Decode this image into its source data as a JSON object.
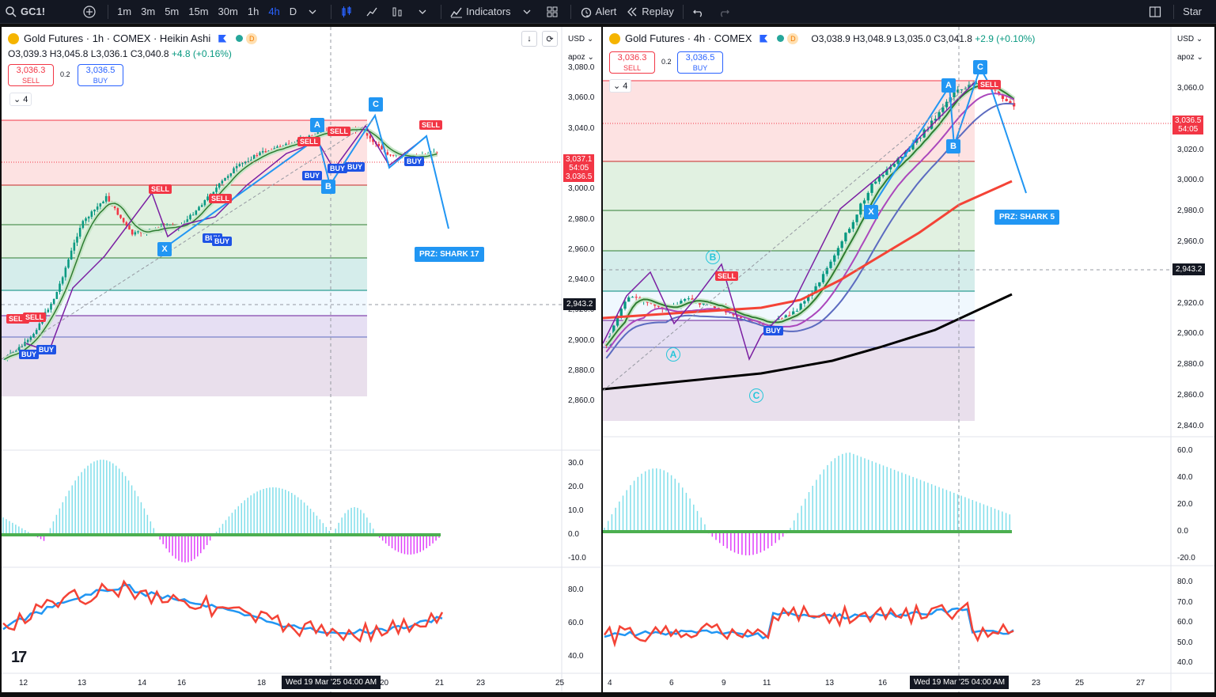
{
  "toolbar": {
    "symbol": "GC1!",
    "intervals": [
      "1m",
      "3m",
      "5m",
      "15m",
      "30m",
      "1h",
      "4h",
      "D"
    ],
    "active_interval": "4h",
    "indicators_label": "Indicators",
    "alert_label": "Alert",
    "replay_label": "Replay",
    "star_label": "Star"
  },
  "left": {
    "title": "Gold Futures · 1h · COMEX · Heikin Ashi",
    "d_badge": "D",
    "ohlc": {
      "o": "O3,039.3",
      "h": "H3,045.8",
      "l": "L3,036.1",
      "c": "C3,040.8",
      "chg": "+4.8 (+0.16%)"
    },
    "sell": {
      "price": "3,036.3",
      "label": "SELL"
    },
    "buy": {
      "price": "3,036.5",
      "label": "BUY"
    },
    "spread": "0.2",
    "collapse": "4",
    "currency": "USD",
    "scale_mode": "apoz",
    "price_ticks": [
      "3,080.0",
      "3,060.0",
      "3,040.0",
      "3,020.0",
      "3,000.0",
      "2,980.0",
      "2,960.0",
      "2,940.0",
      "2,920.0",
      "2,900.0",
      "2,880.0",
      "2,860.0"
    ],
    "osc_ticks": [
      "30.0",
      "20.0",
      "10.0",
      "0.0",
      "-10.0"
    ],
    "rsi_ticks": [
      "80.0",
      "60.0",
      "40.0"
    ],
    "date_ticks": [
      "12",
      "13",
      "14",
      "16",
      "18",
      "20",
      "21",
      "23",
      "25"
    ],
    "date_box": "Wed 19 Mar '25   04:00 AM",
    "price_box": {
      "price": "3,037.1",
      "time": "54:05",
      "price2": "3,036.5"
    },
    "cross_price": "2,943.2",
    "points": [
      "X",
      "A",
      "B",
      "C"
    ],
    "prz": "PRZ: SHARK 17",
    "sell_tag": "SELL",
    "buy_tag": "BUY"
  },
  "right": {
    "title": "Gold Futures · 4h · COMEX",
    "d_badge": "D",
    "ohlc": {
      "o": "O3,038.9",
      "h": "H3,048.9",
      "l": "L3,035.0",
      "c": "C3,041.8",
      "chg": "+2.9 (+0.10%)"
    },
    "sell": {
      "price": "3,036.3",
      "label": "SELL"
    },
    "buy": {
      "price": "3,036.5",
      "label": "BUY"
    },
    "spread": "0.2",
    "collapse": "4",
    "currency": "USD",
    "scale_mode": "apoz",
    "price_ticks": [
      "3,060.0",
      "3,040.0",
      "3,020.0",
      "3,000.0",
      "2,980.0",
      "2,960.0",
      "2,940.0",
      "2,920.0",
      "2,900.0",
      "2,880.0",
      "2,860.0",
      "2,840.0"
    ],
    "osc_ticks": [
      "60.0",
      "40.0",
      "20.0",
      "0.0",
      "-20.0"
    ],
    "rsi_ticks": [
      "80.0",
      "70.0",
      "60.0",
      "50.0",
      "40.0"
    ],
    "date_ticks": [
      "4",
      "6",
      "9",
      "11",
      "13",
      "16",
      "23",
      "25",
      "27"
    ],
    "date_box": "Wed 19 Mar '25   04:00 AM",
    "price_box": {
      "price": "3,036.5",
      "time": "54:05"
    },
    "cross_price": "2,943.2",
    "points": [
      "X",
      "A",
      "B",
      "C"
    ],
    "wave_labels": [
      "A",
      "B",
      "C"
    ],
    "prz": "PRZ: SHARK 5",
    "sell_tag": "SELL",
    "buy_tag": "BUY"
  },
  "colors": {
    "sell": "#f23645",
    "buy": "#2962ff",
    "pattern": "#2196f3",
    "toolbar_bg": "#131722"
  }
}
